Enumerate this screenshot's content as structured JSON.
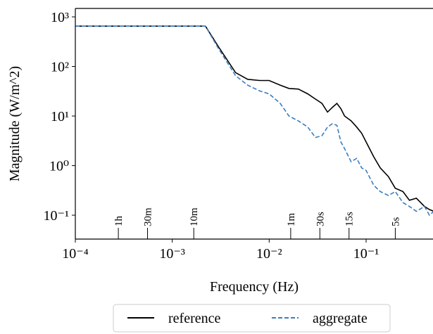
{
  "chart_data": {
    "type": "line",
    "x_label": "Frequency (Hz)",
    "y_label": "Magnitude (W/m^2)",
    "xscale": "log",
    "yscale": "log",
    "xlim": [
      0.0001,
      0.49
    ],
    "ylim": [
      0.033,
      1480
    ],
    "xticks": [
      {
        "value": 0.0001,
        "label": "10⁻⁴"
      },
      {
        "value": 0.001,
        "label": "10⁻³"
      },
      {
        "value": 0.01,
        "label": "10⁻²"
      },
      {
        "value": 0.1,
        "label": "10⁻¹"
      }
    ],
    "yticks": [
      {
        "value": 0.1,
        "label": "10⁻¹"
      },
      {
        "value": 1,
        "label": "10⁰"
      },
      {
        "value": 10,
        "label": "10¹"
      },
      {
        "value": 100,
        "label": "10²"
      },
      {
        "value": 1000,
        "label": "10³"
      }
    ],
    "annotations": [
      {
        "label": "1h",
        "value": 0.0002778
      },
      {
        "label": "30m",
        "value": 0.0005556
      },
      {
        "label": "10m",
        "value": 0.001667
      },
      {
        "label": "1m",
        "value": 0.01667
      },
      {
        "label": "30s",
        "value": 0.03333
      },
      {
        "label": "15s",
        "value": 0.06667
      },
      {
        "label": "5s",
        "value": 0.2
      }
    ],
    "legend": "lower center outside",
    "x": [
      0.0001,
      0.0022,
      0.003,
      0.0045,
      0.006,
      0.008,
      0.01,
      0.013,
      0.016,
      0.02,
      0.025,
      0.03,
      0.035,
      0.04,
      0.045,
      0.05,
      0.055,
      0.06,
      0.07,
      0.08,
      0.09,
      0.1,
      0.12,
      0.14,
      0.17,
      0.2,
      0.24,
      0.28,
      0.33,
      0.4,
      0.45,
      0.5
    ],
    "series": [
      {
        "name": "reference",
        "color": "#000000",
        "dash": "solid",
        "values": [
          650,
          650,
          250,
          75,
          55,
          52,
          52,
          42,
          36,
          35,
          28,
          22,
          18,
          12,
          15,
          18,
          14,
          10,
          8,
          6,
          4.5,
          3,
          1.5,
          0.9,
          0.6,
          0.35,
          0.3,
          0.2,
          0.22,
          0.15,
          0.13,
          0.12
        ]
      },
      {
        "name": "aggregate",
        "color": "#3a7ebf",
        "dash": "dashed",
        "values": [
          650,
          650,
          230,
          65,
          42,
          32,
          28,
          18,
          10,
          8,
          6,
          3.7,
          4,
          6,
          7,
          6.5,
          3,
          2.2,
          1.2,
          1.4,
          0.9,
          0.8,
          0.4,
          0.3,
          0.25,
          0.3,
          0.18,
          0.15,
          0.12,
          0.15,
          0.1,
          0.12
        ]
      }
    ]
  }
}
